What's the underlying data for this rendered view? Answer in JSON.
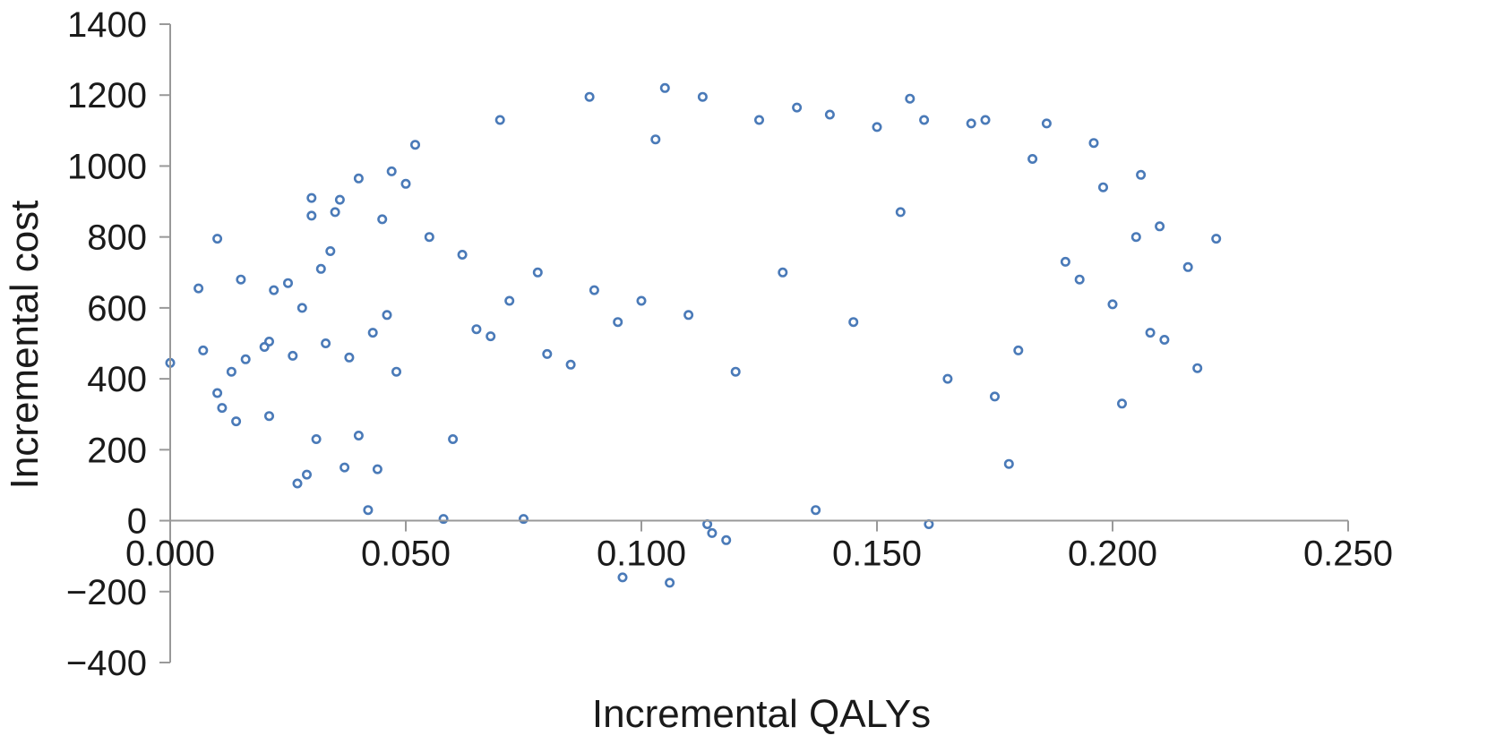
{
  "chart_data": {
    "type": "scatter",
    "title": "",
    "xlabel": "Incremental QALYs",
    "ylabel": "Incremental cost",
    "xlim": [
      0.0,
      0.25
    ],
    "ylim": [
      -400,
      1400
    ],
    "x_ticks": [
      "0.000",
      "0.050",
      "0.100",
      "0.150",
      "0.200",
      "0.250"
    ],
    "y_ticks": [
      "1400",
      "1200",
      "1000",
      "800",
      "600",
      "400",
      "200",
      "0",
      "−200",
      "−400"
    ],
    "grid": false,
    "legend": "none",
    "colors": {
      "marker": "#4a7ab8",
      "axis": "#999999"
    },
    "series": [
      {
        "x": [
          0.0,
          0.006,
          0.007,
          0.01,
          0.01,
          0.011,
          0.013,
          0.014,
          0.015,
          0.016,
          0.02,
          0.021,
          0.021,
          0.022,
          0.025,
          0.026,
          0.027,
          0.028,
          0.029,
          0.03,
          0.03,
          0.031,
          0.032,
          0.033,
          0.034,
          0.035,
          0.036,
          0.037,
          0.038,
          0.04,
          0.04,
          0.042,
          0.043,
          0.044,
          0.045,
          0.046,
          0.047,
          0.048,
          0.05,
          0.052,
          0.055,
          0.058,
          0.06,
          0.062,
          0.065,
          0.068,
          0.07,
          0.072,
          0.075,
          0.078,
          0.08,
          0.085,
          0.089,
          0.09,
          0.095,
          0.096,
          0.1,
          0.103,
          0.105,
          0.106,
          0.11,
          0.113,
          0.114,
          0.115,
          0.118,
          0.12,
          0.125,
          0.13,
          0.133,
          0.137,
          0.14,
          0.145,
          0.15,
          0.155,
          0.157,
          0.16,
          0.161,
          0.165,
          0.17,
          0.173,
          0.175,
          0.178,
          0.18,
          0.183,
          0.186,
          0.19,
          0.193,
          0.196,
          0.198,
          0.2,
          0.202,
          0.205,
          0.206,
          0.208,
          0.21,
          0.211,
          0.216,
          0.218,
          0.222
        ],
        "y": [
          445,
          655,
          480,
          795,
          360,
          318,
          420,
          280,
          680,
          455,
          490,
          505,
          295,
          650,
          670,
          465,
          105,
          600,
          130,
          910,
          860,
          230,
          710,
          500,
          760,
          870,
          905,
          150,
          460,
          965,
          240,
          30,
          530,
          145,
          850,
          580,
          985,
          420,
          950,
          1060,
          800,
          5,
          230,
          750,
          540,
          520,
          1130,
          620,
          5,
          700,
          470,
          440,
          1195,
          650,
          560,
          -160,
          620,
          1075,
          1220,
          -175,
          580,
          1195,
          -10,
          -35,
          -55,
          420,
          1130,
          700,
          1165,
          30,
          1145,
          560,
          1110,
          870,
          1190,
          1130,
          -10,
          400,
          1120,
          1130,
          350,
          160,
          480,
          1020,
          1120,
          730,
          680,
          1065,
          940,
          610,
          330,
          800,
          975,
          530,
          830,
          510,
          715,
          430,
          795
        ]
      }
    ]
  }
}
